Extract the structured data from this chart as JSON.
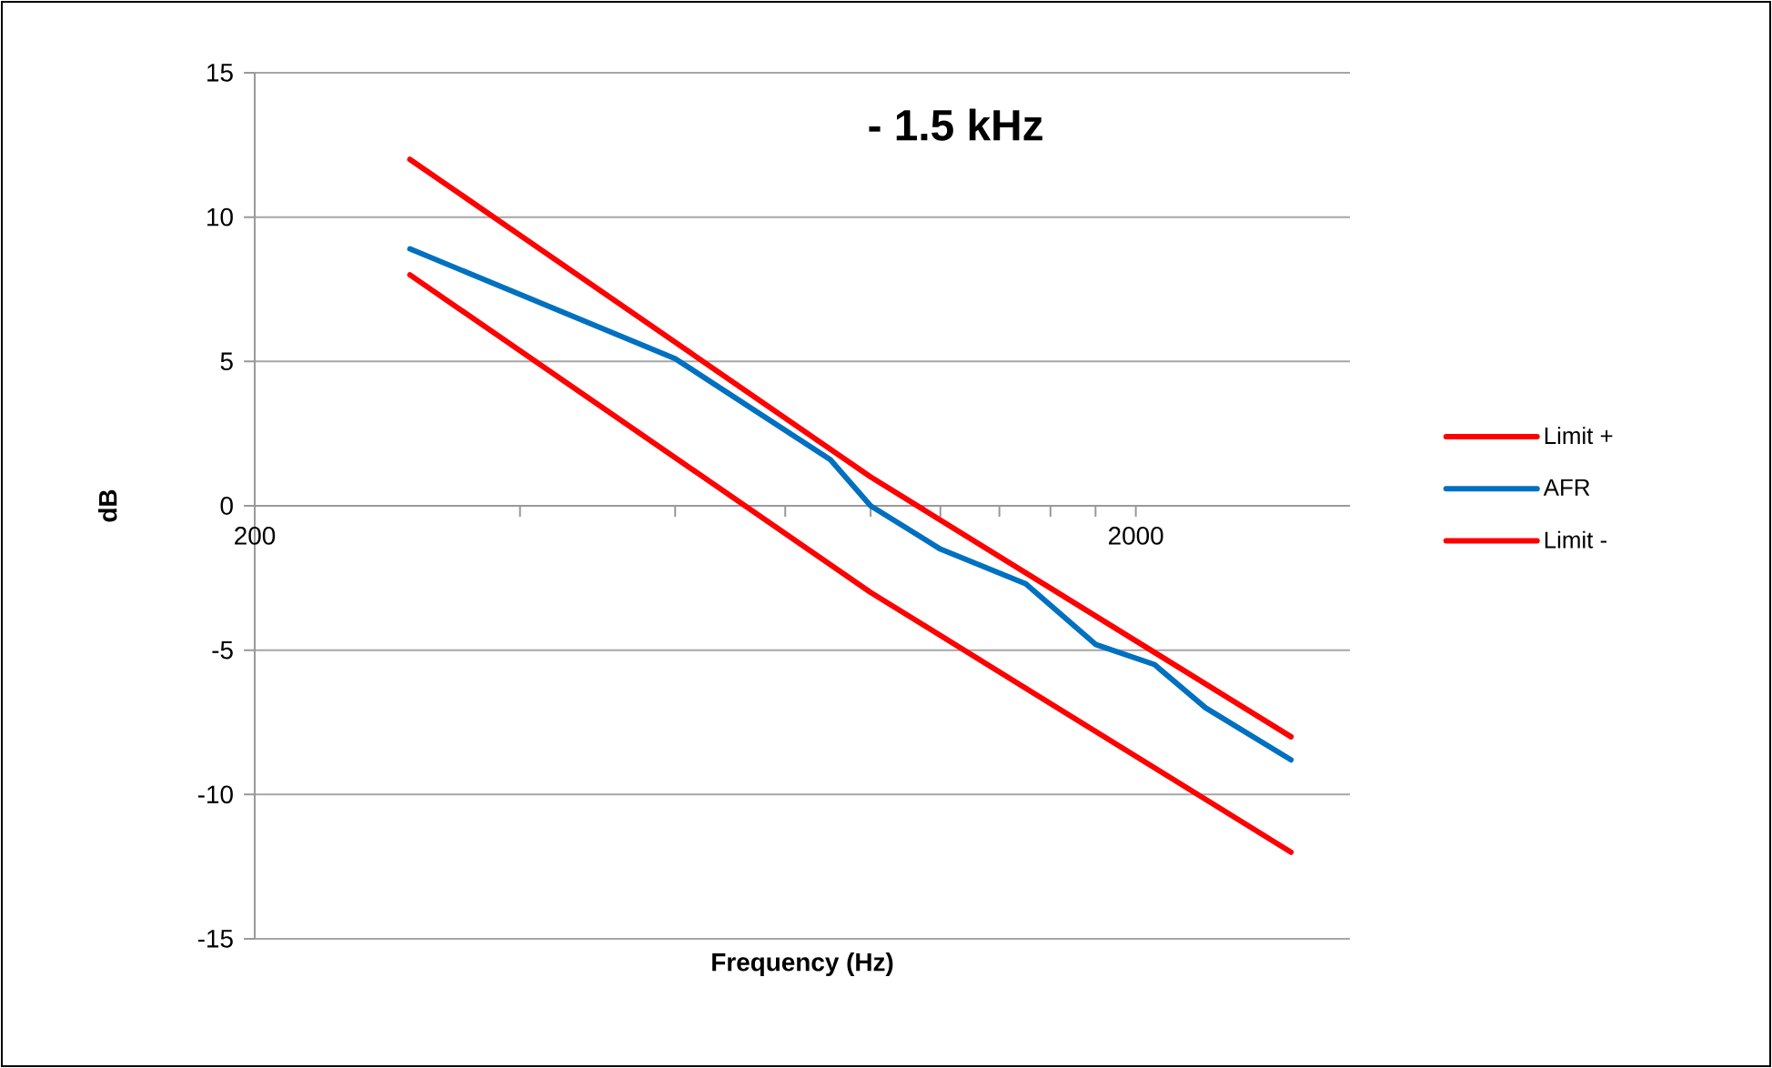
{
  "chart_data": {
    "type": "line",
    "title": "- 1.5 kHz",
    "xlabel": "Frequency (Hz)",
    "ylabel": "dB",
    "log": "x",
    "xlim": [
      200,
      3500
    ],
    "ylim": [
      -15,
      15
    ],
    "xticks": [
      200,
      {
        "value": 400,
        "label": null
      },
      {
        "value": 600,
        "label": null
      },
      {
        "value": 800,
        "label": null
      },
      {
        "value": 1000,
        "label": null
      },
      {
        "value": 1200,
        "label": null
      },
      {
        "value": 1400,
        "label": null
      },
      {
        "value": 1600,
        "label": null
      },
      {
        "value": 1800,
        "label": null
      },
      2000
    ],
    "yticks": [
      -15,
      -10,
      -5,
      0,
      5,
      10,
      15
    ],
    "grid": "y",
    "legend": "right",
    "line_style": "solid",
    "marker": "none",
    "series": [
      {
        "name": "Limit +",
        "color": "#ff0000",
        "x": [
          300,
          1000,
          3000
        ],
        "values": [
          12,
          1,
          -8
        ]
      },
      {
        "name": "AFR",
        "color": "#0070c0",
        "x": [
          300,
          600,
          900,
          1000,
          1200,
          1500,
          1800,
          2100,
          2400,
          3000
        ],
        "values": [
          8.9,
          5.1,
          1.6,
          0,
          -1.5,
          -2.7,
          -4.8,
          -5.5,
          -7,
          -8.8
        ]
      },
      {
        "name": "Limit -",
        "color": "#ff0000",
        "x": [
          300,
          1000,
          3000
        ],
        "values": [
          8,
          -3,
          -12
        ]
      }
    ]
  }
}
